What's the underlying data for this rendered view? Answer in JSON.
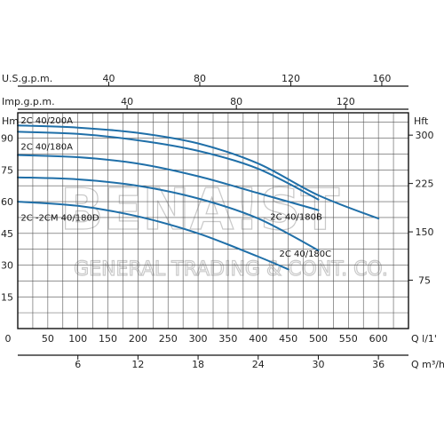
{
  "chart_data": {
    "type": "line",
    "grid": true,
    "axes": {
      "x_primary": {
        "label": "Q l/1'",
        "range": [
          0,
          650
        ],
        "ticks": [
          0,
          50,
          100,
          150,
          200,
          250,
          300,
          350,
          400,
          450,
          500,
          550,
          600
        ]
      },
      "x_m3h": {
        "label": "Q m³/h",
        "ticks": [
          6,
          12,
          18,
          24,
          30,
          36
        ]
      },
      "x_usgpm": {
        "label": "U.S.g.p.m.",
        "ticks": [
          40,
          80,
          120,
          160
        ]
      },
      "x_impgpm": {
        "label": "Imp.g.p.m.",
        "ticks": [
          40,
          80,
          120
        ]
      },
      "y_left": {
        "label": "Hm",
        "range": [
          0,
          102
        ],
        "ticks": [
          15,
          30,
          45,
          60,
          75,
          90
        ]
      },
      "y_right": {
        "label": "Hft",
        "ticks": [
          75,
          150,
          225,
          300
        ]
      }
    },
    "series": [
      {
        "name": "2C 40/200A",
        "points": [
          [
            0,
            96
          ],
          [
            100,
            95
          ],
          [
            200,
            92.5
          ],
          [
            300,
            87.5
          ],
          [
            400,
            78
          ],
          [
            500,
            63
          ],
          [
            600,
            52
          ]
        ]
      },
      {
        "name": "2C 40/180A",
        "points": [
          [
            0,
            93
          ],
          [
            100,
            92
          ],
          [
            200,
            89
          ],
          [
            300,
            84
          ],
          [
            400,
            75.5
          ],
          [
            500,
            61
          ]
        ]
      },
      {
        "name": "2C 40/180B",
        "points": [
          [
            0,
            82
          ],
          [
            100,
            81
          ],
          [
            200,
            78
          ],
          [
            300,
            72
          ],
          [
            400,
            64
          ],
          [
            500,
            56
          ]
        ]
      },
      {
        "name": "2C 40/180C",
        "points": [
          [
            0,
            71.5
          ],
          [
            100,
            70.5
          ],
          [
            200,
            67.5
          ],
          [
            300,
            61.5
          ],
          [
            400,
            52
          ],
          [
            500,
            37
          ]
        ]
      },
      {
        "name": "2C -2CM 40/180D",
        "points": [
          [
            0,
            60
          ],
          [
            100,
            58
          ],
          [
            200,
            53
          ],
          [
            300,
            45
          ],
          [
            400,
            34
          ],
          [
            450,
            28
          ]
        ]
      }
    ],
    "curve_labels": [
      {
        "text": "2C 40/200A",
        "at": [
          5,
          97
        ]
      },
      {
        "text": "2C 40/180A",
        "at": [
          5,
          84.5
        ]
      },
      {
        "text": "2C 40/180B",
        "at": [
          420,
          51.5
        ]
      },
      {
        "text": "2C -2CM 40/180D",
        "at": [
          5,
          51
        ]
      },
      {
        "text": "2C 40/180C",
        "at": [
          435,
          34
        ]
      }
    ],
    "colors": {
      "curve": "#1f6fa8",
      "grid": "#555555",
      "frame": "#111111"
    }
  },
  "watermark": {
    "line1": "BENA!ST",
    "line2": "GENERAL TRADING & CONT. CO."
  }
}
